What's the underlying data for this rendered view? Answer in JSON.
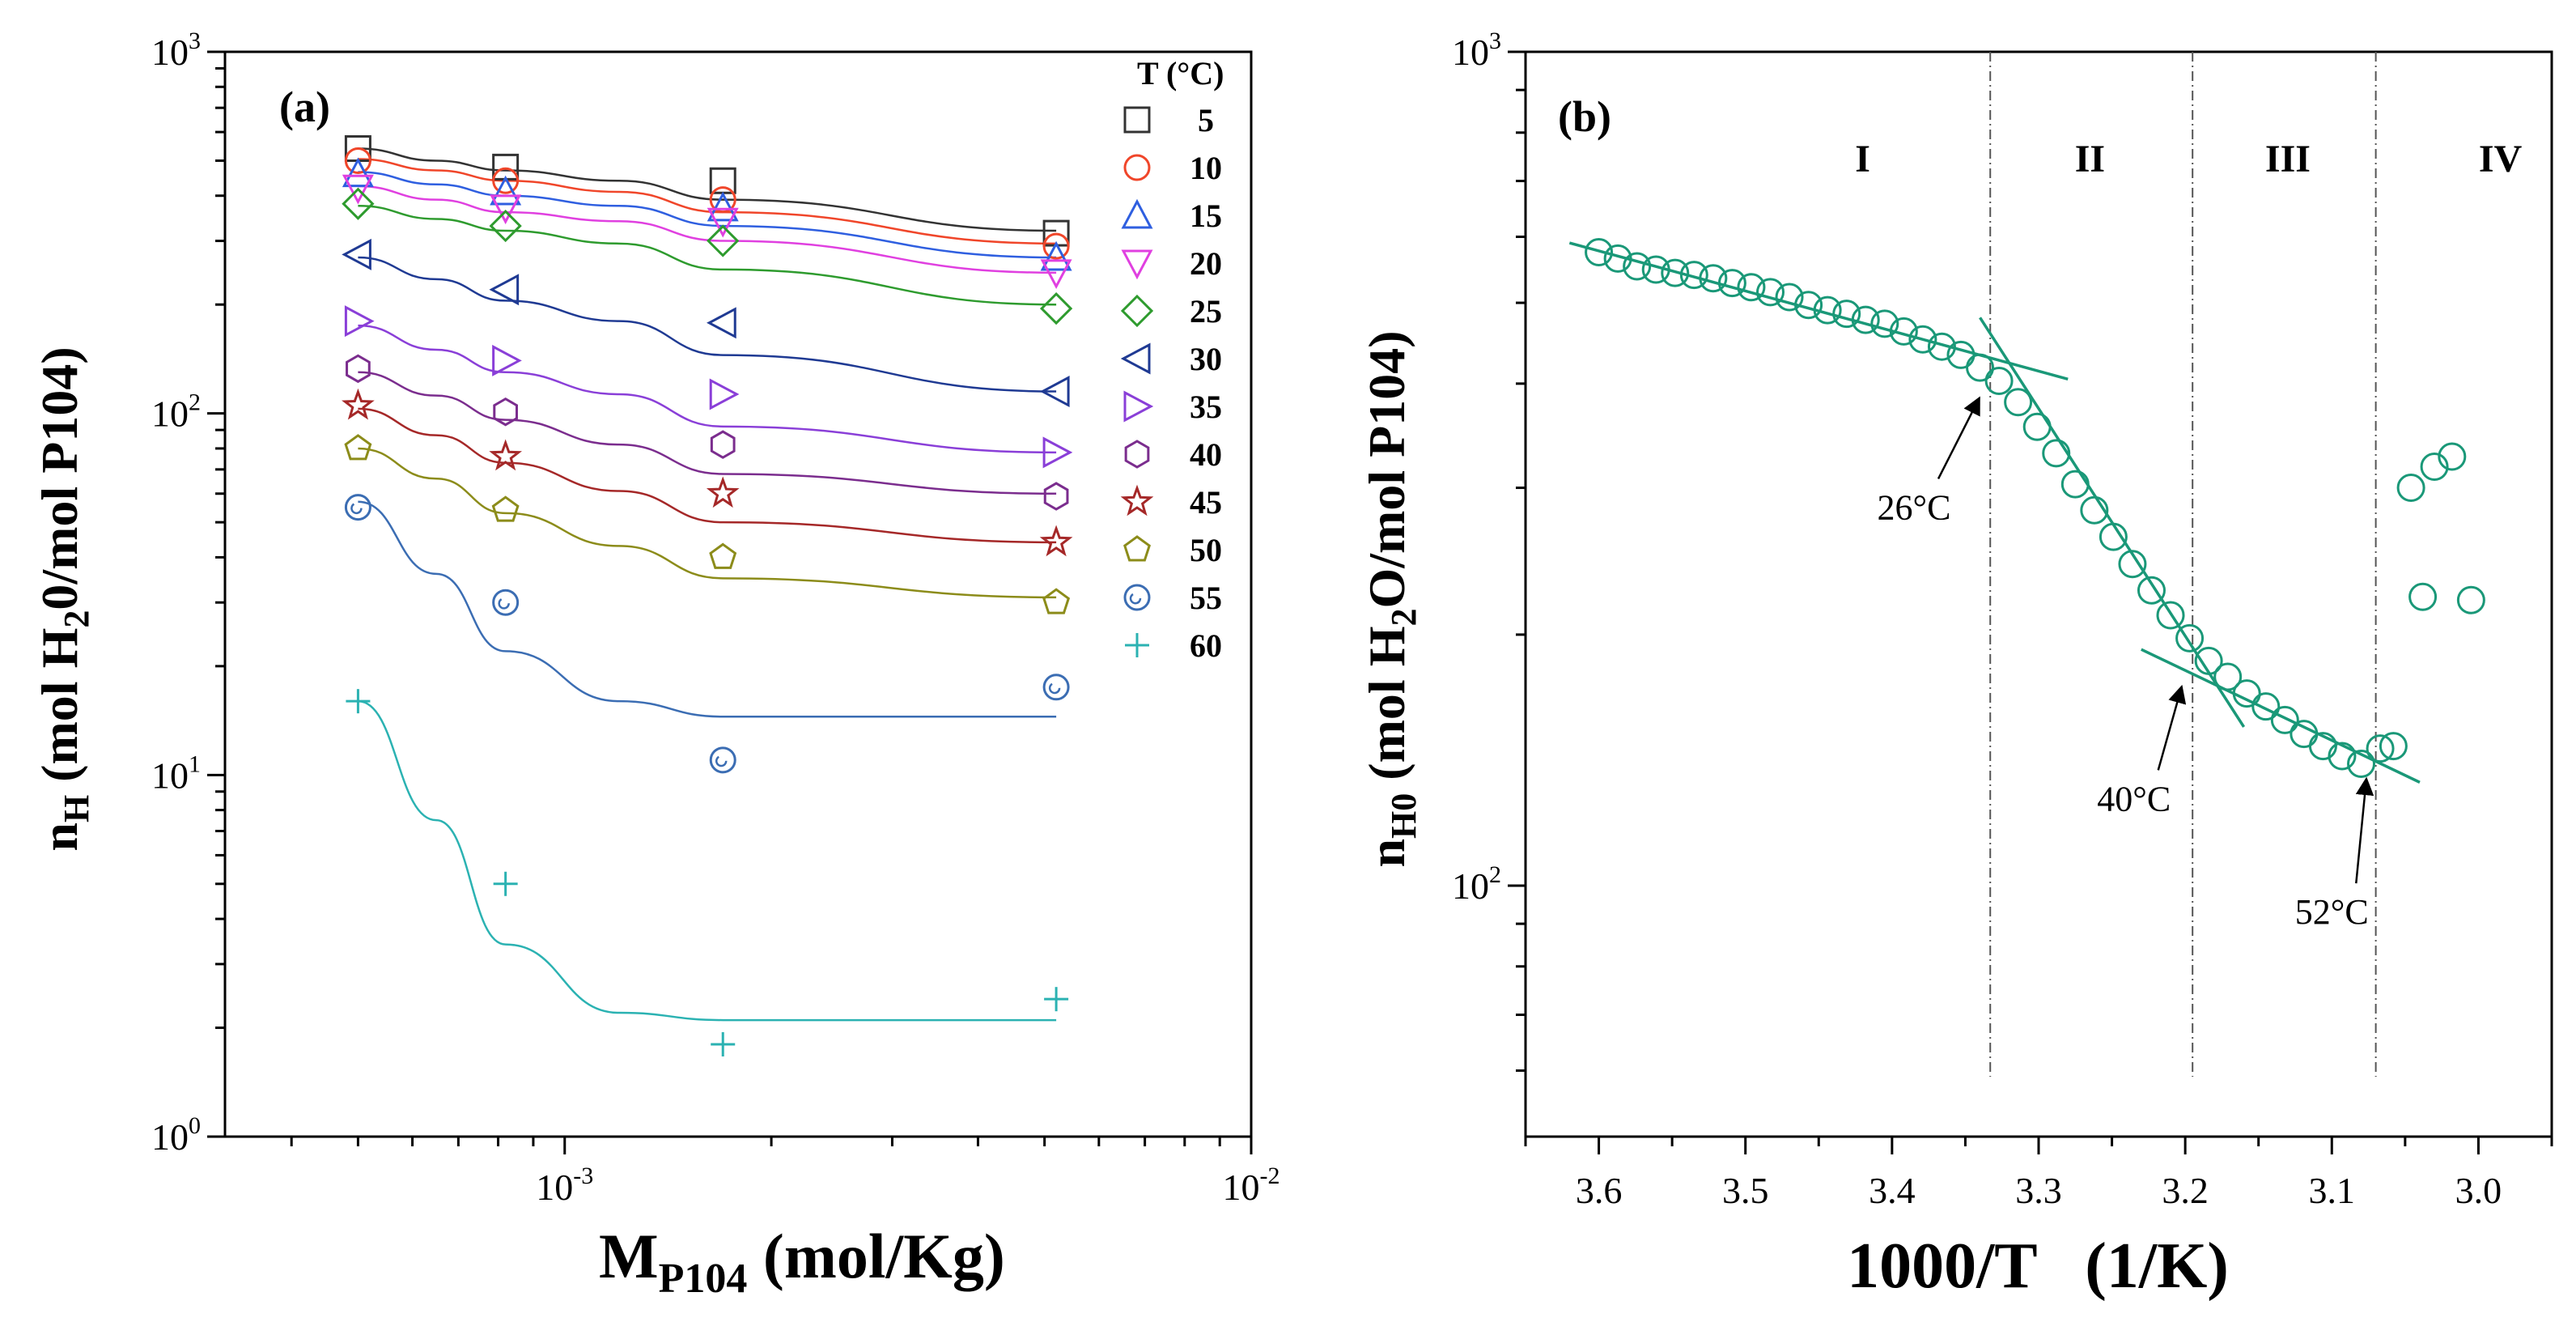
{
  "chart_data": [
    {
      "type": "scatter",
      "panel_label": "(a)",
      "x_scale": "log",
      "y_scale": "log",
      "xlim": [
        0.00032,
        0.01
      ],
      "ylim": [
        1,
        1000
      ],
      "xlabel_main": "M",
      "xlabel_sub": "P104",
      "xlabel_rest": " (mol/Kg)",
      "ylabel_main": "n",
      "ylabel_sub": "H",
      "ylabel_rest_1": " (mol H",
      "ylabel_sub2": "2",
      "ylabel_rest_2": "0/mol P104)",
      "x_ticks": [
        {
          "value": 0.001,
          "base": "10",
          "exp": "-3"
        },
        {
          "value": 0.01,
          "base": "10",
          "exp": "-2"
        }
      ],
      "y_ticks": [
        {
          "value": 1,
          "base": "10",
          "exp": "0"
        },
        {
          "value": 10,
          "base": "10",
          "exp": "1"
        },
        {
          "value": 100,
          "base": "10",
          "exp": "2"
        },
        {
          "value": 1000,
          "base": "10",
          "exp": "3"
        }
      ],
      "legend_title": "T (°C)",
      "legend_position": "top-right",
      "x": [
        0.0005,
        0.00082,
        0.0017,
        0.0052
      ],
      "series": [
        {
          "name": "5",
          "marker": "square",
          "color": "#333333",
          "values": [
            540,
            480,
            440,
            315
          ]
        },
        {
          "name": "10",
          "marker": "circle",
          "color": "#f0462a",
          "values": [
            500,
            440,
            390,
            290
          ]
        },
        {
          "name": "15",
          "marker": "triangle-up",
          "color": "#2f5fe0",
          "values": [
            460,
            410,
            370,
            270
          ]
        },
        {
          "name": "20",
          "marker": "triangle-down",
          "color": "#e040e0",
          "values": [
            420,
            370,
            340,
            245
          ]
        },
        {
          "name": "25",
          "marker": "diamond",
          "color": "#2e9b2e",
          "values": [
            380,
            330,
            300,
            195
          ]
        },
        {
          "name": "30",
          "marker": "triangle-left",
          "color": "#1f3a93",
          "values": [
            275,
            220,
            178,
            115
          ]
        },
        {
          "name": "35",
          "marker": "triangle-right",
          "color": "#8a3fd8",
          "values": [
            180,
            140,
            113,
            78
          ]
        },
        {
          "name": "40",
          "marker": "hexagon",
          "color": "#7b2d8e",
          "values": [
            133,
            101,
            82,
            59
          ]
        },
        {
          "name": "45",
          "marker": "star",
          "color": "#a52828",
          "values": [
            105,
            76,
            60,
            44
          ]
        },
        {
          "name": "50",
          "marker": "pentagon",
          "color": "#8c8c1a",
          "values": [
            80,
            54,
            40,
            30
          ]
        },
        {
          "name": "55",
          "marker": "circle-dot",
          "color": "#3b6db3",
          "values": [
            55,
            30,
            11,
            17.5
          ]
        },
        {
          "name": "60",
          "marker": "plus",
          "color": "#2bb2b2",
          "values": [
            16,
            5,
            1.8,
            2.4
          ]
        }
      ],
      "fits": [
        [
          540,
          500,
          470,
          440,
          390,
          320
        ],
        [
          505,
          470,
          440,
          410,
          360,
          295
        ],
        [
          465,
          430,
          400,
          375,
          330,
          270
        ],
        [
          425,
          390,
          360,
          340,
          300,
          245
        ],
        [
          375,
          345,
          320,
          295,
          250,
          200
        ],
        [
          270,
          235,
          205,
          180,
          145,
          115
        ],
        [
          175,
          150,
          130,
          113,
          92,
          78
        ],
        [
          130,
          112,
          96,
          82,
          68,
          60
        ],
        [
          103,
          87,
          73,
          61,
          50,
          44
        ],
        [
          80,
          66,
          53,
          43,
          35,
          31
        ],
        [
          57,
          36,
          22,
          16,
          14.5,
          14.5
        ],
        [
          16,
          7.5,
          3.4,
          2.2,
          2.1,
          2.1
        ]
      ],
      "fit_x": [
        0.0005,
        0.00065,
        0.00082,
        0.0012,
        0.0017,
        0.0052
      ]
    },
    {
      "type": "scatter",
      "panel_label": "(b)",
      "x_scale": "linear-reversed",
      "y_scale": "log",
      "xlim": [
        3.65,
        2.95
      ],
      "ylim": [
        50,
        1000
      ],
      "xlabel": "1000/T   (1/K)",
      "ylabel_main": "n",
      "ylabel_sub": "H0",
      "ylabel_rest_1": " (mol H",
      "ylabel_sub2": "2",
      "ylabel_rest_2": "O/mol P104)",
      "x_ticks": [
        "3.6",
        "3.5",
        "3.4",
        "3.3",
        "3.2",
        "3.1",
        "3.0"
      ],
      "x_tick_values": [
        3.6,
        3.5,
        3.4,
        3.3,
        3.2,
        3.1,
        3.0
      ],
      "y_ticks": [
        {
          "value": 100,
          "base": "10",
          "exp": "2"
        },
        {
          "value": 1000,
          "base": "10",
          "exp": "3"
        }
      ],
      "marker_color": "#1a9878",
      "points": [
        [
          3.6,
          575
        ],
        [
          3.587,
          565
        ],
        [
          3.574,
          553
        ],
        [
          3.561,
          548
        ],
        [
          3.548,
          543
        ],
        [
          3.535,
          540
        ],
        [
          3.522,
          535
        ],
        [
          3.509,
          528
        ],
        [
          3.496,
          522
        ],
        [
          3.483,
          515
        ],
        [
          3.47,
          508
        ],
        [
          3.457,
          497
        ],
        [
          3.444,
          490
        ],
        [
          3.431,
          485
        ],
        [
          3.418,
          477
        ],
        [
          3.405,
          472
        ],
        [
          3.392,
          462
        ],
        [
          3.379,
          452
        ],
        [
          3.366,
          443
        ],
        [
          3.353,
          433
        ],
        [
          3.34,
          418
        ],
        [
          3.327,
          403
        ],
        [
          3.314,
          380
        ],
        [
          3.301,
          355
        ],
        [
          3.288,
          330
        ],
        [
          3.275,
          303
        ],
        [
          3.262,
          282
        ],
        [
          3.249,
          262
        ],
        [
          3.236,
          243
        ],
        [
          3.223,
          226
        ],
        [
          3.21,
          211
        ],
        [
          3.197,
          198
        ],
        [
          3.184,
          186
        ],
        [
          3.171,
          178
        ],
        [
          3.158,
          170
        ],
        [
          3.145,
          164
        ],
        [
          3.132,
          158
        ],
        [
          3.119,
          152
        ],
        [
          3.106,
          147
        ],
        [
          3.093,
          143
        ],
        [
          3.08,
          140
        ],
        [
          3.067,
          146
        ],
        [
          3.058,
          147
        ],
        [
          3.046,
          300
        ],
        [
          3.038,
          222
        ],
        [
          3.03,
          318
        ],
        [
          3.018,
          327
        ],
        [
          3.005,
          220
        ]
      ],
      "fit_lines": [
        {
          "from": [
            3.62,
            590
          ],
          "to": [
            3.28,
            405
          ]
        },
        {
          "from": [
            3.34,
            480
          ],
          "to": [
            3.16,
            155
          ]
        },
        {
          "from": [
            3.23,
            192
          ],
          "to": [
            3.04,
            133
          ]
        }
      ],
      "regions": [
        {
          "label": "I",
          "x": 3.42
        },
        {
          "label": "II",
          "x": 3.265
        },
        {
          "label": "III",
          "x": 3.13
        },
        {
          "label": "IV",
          "x": 2.985
        }
      ],
      "dividers": [
        3.333,
        3.195,
        3.07
      ],
      "annotations": [
        {
          "text": "26°C",
          "text_x": 3.385,
          "text_y": 275,
          "arrow_to": [
            3.336,
            395
          ]
        },
        {
          "text": "40°C",
          "text_x": 3.235,
          "text_y": 123,
          "arrow_to": [
            3.198,
            178
          ]
        },
        {
          "text": "52°C",
          "text_x": 3.1,
          "text_y": 90,
          "arrow_to": [
            3.072,
            138
          ]
        }
      ]
    }
  ]
}
